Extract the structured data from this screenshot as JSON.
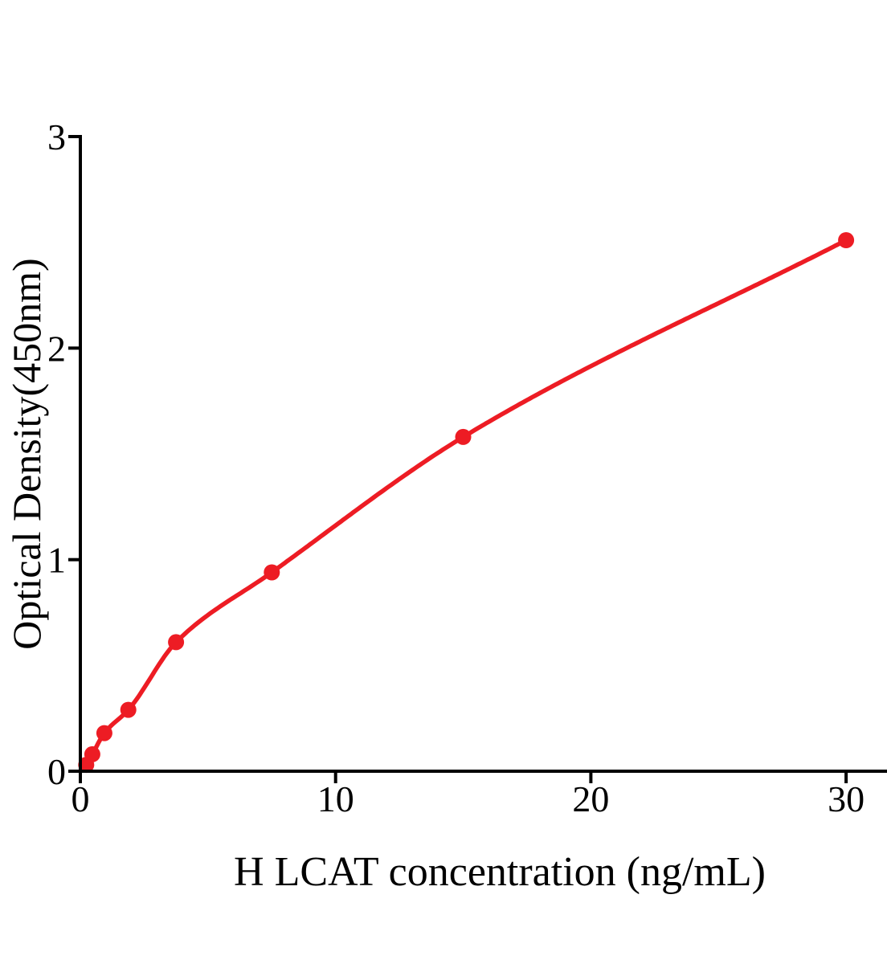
{
  "chart_data": {
    "type": "scatter",
    "title": "",
    "xlabel": "H LCAT concentration (ng/mL)",
    "ylabel": "Optical Density(450nm)",
    "x": [
      0.23,
      0.47,
      0.94,
      1.88,
      3.75,
      7.5,
      15,
      30
    ],
    "y": [
      0.03,
      0.08,
      0.18,
      0.29,
      0.61,
      0.94,
      1.58,
      2.51
    ],
    "curve_start": [
      0,
      0
    ],
    "x_ticks": [
      0,
      10,
      20,
      30
    ],
    "x_tick_labels": [
      "0",
      "10",
      "20",
      "30"
    ],
    "y_ticks": [
      0,
      1,
      2,
      3
    ],
    "y_tick_labels": [
      "0",
      "1",
      "2",
      "3"
    ],
    "xlim": [
      0,
      31.6
    ],
    "ylim": [
      0,
      3
    ],
    "grid": false,
    "legend": false,
    "line_color": "#ED1C24",
    "point_color": "#ED1C24",
    "axis_color": "#000000",
    "text_color": "#000000"
  }
}
